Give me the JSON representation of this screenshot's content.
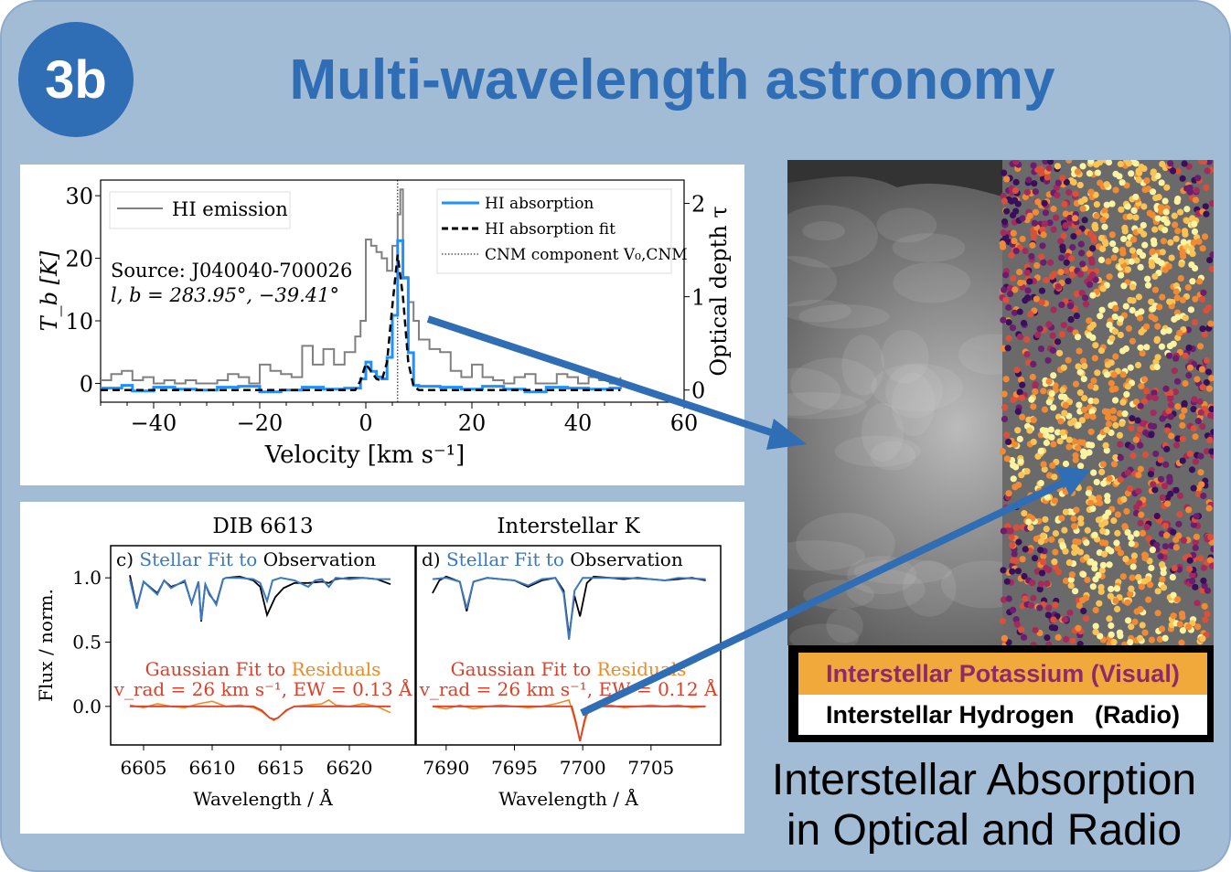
{
  "badge": "3b",
  "title": "Multi-wavelength astronomy",
  "colors": {
    "accent": "#2f6db5",
    "background": "#a3bcd6",
    "emission": "#808080",
    "absorption": "#1e90ff",
    "fit": "#000000",
    "stellar_fit": "#3a78c0",
    "observation": "#000000",
    "gaussian_fit": "#d9412b",
    "residuals": "#f08a24",
    "legend_visual": "#f2a93b"
  },
  "chart_data": [
    {
      "type": "line",
      "panel": "HI",
      "xlabel": "Velocity [km s⁻¹]",
      "ylabel": "T_b [K]",
      "ylabel_right": "Optical depth τ",
      "xlim": [
        -50,
        60
      ],
      "ylim": [
        -3,
        32.5
      ],
      "ylim_right": [
        -0.13,
        2.25
      ],
      "xticks": [
        "−40",
        "−20",
        "0",
        "20",
        "40",
        "60"
      ],
      "xtick_values": [
        -40,
        -20,
        0,
        20,
        40,
        60
      ],
      "yticks": [
        "0",
        "10",
        "20",
        "30"
      ],
      "ytick_values": [
        0,
        10,
        20,
        30
      ],
      "yticks_right": [
        "0",
        "1",
        "2"
      ],
      "ytick_right_values": [
        0,
        1,
        2
      ],
      "annotation_source": "Source: J040040-700026",
      "annotation_coords": "l, b = 283.95°, −39.41°",
      "legend_left": [
        "HI emission"
      ],
      "legend_right": [
        "HI absorption",
        "HI absorption fit",
        "CNM component V₀,CNM"
      ],
      "cnm_velocity": 6,
      "series": [
        {
          "name": "HI emission",
          "axis": "left",
          "x": [
            -50,
            -48,
            -46,
            -44,
            -42,
            -40,
            -38,
            -36,
            -34,
            -32,
            -30,
            -28,
            -26,
            -24,
            -22,
            -20,
            -18,
            -16,
            -14,
            -12,
            -10,
            -8,
            -6,
            -4,
            -2,
            -1,
            0,
            1,
            2,
            3,
            4,
            5,
            6,
            6.5,
            7,
            8,
            9,
            10,
            12,
            14,
            16,
            18,
            20,
            22,
            24,
            26,
            28,
            30,
            32,
            34,
            36,
            38,
            40,
            42,
            44,
            46,
            48
          ],
          "y": [
            0.5,
            1.5,
            2,
            0.5,
            1,
            0,
            0.5,
            0,
            0.5,
            0,
            0,
            0.5,
            1.5,
            1,
            0,
            3,
            2,
            1.5,
            1,
            6,
            3,
            5.5,
            3,
            5,
            7.5,
            10,
            23,
            22,
            21,
            20,
            18,
            22,
            27,
            31,
            17,
            13,
            10,
            7,
            5.5,
            5,
            2,
            1,
            3,
            1,
            0.5,
            0,
            1,
            1.5,
            0,
            0,
            1.5,
            1,
            0,
            1,
            0.5,
            0,
            1
          ]
        },
        {
          "name": "HI absorption",
          "axis": "right",
          "x": [
            -50,
            -46,
            -44,
            -40,
            -36,
            -32,
            -28,
            -24,
            -20,
            -16,
            -12,
            -8,
            -4,
            -2,
            -1,
            0,
            1,
            2,
            3,
            4,
            5,
            6,
            7,
            8,
            9,
            10,
            14,
            18,
            22,
            26,
            30,
            34,
            38,
            42,
            46,
            48
          ],
          "y": [
            0.02,
            0.05,
            -0.01,
            0.03,
            0.01,
            0,
            0.03,
            0.04,
            -0.02,
            0,
            0.03,
            0.01,
            0.02,
            0.02,
            0.12,
            0.3,
            0.2,
            0.14,
            0.12,
            0.35,
            0.8,
            1.6,
            1.2,
            0.4,
            0.05,
            0.04,
            0.03,
            0.01,
            0.04,
            0.01,
            -0.02,
            0.03,
            0.02,
            0.01,
            0.02,
            0.01
          ]
        },
        {
          "name": "HI absorption fit",
          "axis": "right",
          "x": [
            -50,
            -2,
            -1,
            0,
            1,
            2,
            3,
            4,
            5,
            6,
            7,
            8,
            9,
            10,
            48
          ],
          "y": [
            0,
            0,
            0.1,
            0.28,
            0.2,
            0.12,
            0.1,
            0.3,
            0.9,
            1.45,
            1.0,
            0.3,
            0.04,
            0,
            0
          ]
        }
      ]
    },
    {
      "type": "line",
      "panel": "c",
      "title": "DIB 6613",
      "panel_label": "c)",
      "xlabel": "Wavelength / Å",
      "ylabel": "Flux / norm.",
      "xlim": [
        6602.6,
        6624.8
      ],
      "ylim": [
        -0.3,
        1.25
      ],
      "xticks": [
        "6605",
        "6610",
        "6615",
        "6620"
      ],
      "xtick_values": [
        6605,
        6610,
        6615,
        6620
      ],
      "yticks": [
        "0.0",
        "0.5",
        "1.0"
      ],
      "ytick_values": [
        0,
        0.5,
        1
      ],
      "top_label": {
        "a": "Stellar Fit to ",
        "b": "Observation"
      },
      "bottom_label": {
        "a": "Gaussian Fit to ",
        "b": "Residuals"
      },
      "fit_text": "v_rad = 26 km s⁻¹, EW = 0.13 Å",
      "series": [
        {
          "name": "Observation",
          "x": [
            6604,
            6604.5,
            6605,
            6606,
            6606.5,
            6607,
            6608,
            6608.5,
            6609,
            6609.2,
            6609.5,
            6609.8,
            6610.3,
            6610.8,
            6611,
            6612,
            6613,
            6613.5,
            6614,
            6614.6,
            6615.2,
            6616,
            6617,
            6618,
            6618.5,
            6619,
            6620,
            6621,
            6622,
            6623
          ],
          "y": [
            1.02,
            0.77,
            0.97,
            0.88,
            0.98,
            0.93,
            0.97,
            0.8,
            0.97,
            0.66,
            0.95,
            0.87,
            0.8,
            0.99,
            1.0,
            1.01,
            0.98,
            0.93,
            0.71,
            0.85,
            0.92,
            0.96,
            0.96,
            0.97,
            0.96,
            0.99,
            1.0,
            1.0,
            0.99,
            0.95
          ]
        },
        {
          "name": "Stellar Fit",
          "x": [
            6604,
            6604.5,
            6605,
            6606,
            6606.5,
            6607,
            6608,
            6608.5,
            6609,
            6609.2,
            6609.5,
            6609.8,
            6610.3,
            6610.8,
            6611,
            6612,
            6613,
            6613.5,
            6614,
            6614.4,
            6615,
            6616,
            6617,
            6617.5,
            6618,
            6618.5,
            6619,
            6620,
            6621,
            6622,
            6623
          ],
          "y": [
            0.99,
            0.76,
            0.97,
            0.87,
            0.98,
            0.92,
            0.98,
            0.8,
            0.97,
            0.67,
            0.95,
            0.88,
            0.79,
            0.99,
            1.0,
            1.0,
            0.99,
            0.96,
            0.82,
            0.98,
            1.0,
            0.98,
            0.93,
            0.98,
            0.99,
            0.93,
            1.0,
            0.99,
            1.0,
            0.99,
            0.99
          ]
        },
        {
          "name": "Residuals",
          "x": [
            6604,
            6605,
            6606,
            6607,
            6608,
            6609,
            6610,
            6611,
            6612,
            6613,
            6613.6,
            6614.2,
            6614.5,
            6615,
            6615.6,
            6616,
            6617,
            6618,
            6618.5,
            6619,
            6620,
            6621,
            6622,
            6623
          ],
          "y": [
            0.01,
            -0.01,
            0.02,
            0,
            -0.01,
            0.02,
            0.04,
            0,
            0.01,
            -0.01,
            -0.04,
            -0.09,
            -0.11,
            -0.07,
            -0.02,
            0,
            0.01,
            0.02,
            0.05,
            0.01,
            0,
            0.02,
            0,
            -0.05
          ]
        },
        {
          "name": "Gaussian Fit",
          "x": [
            6604,
            6613,
            6613.6,
            6614.2,
            6614.5,
            6614.8,
            6615.4,
            6616,
            6623
          ],
          "y": [
            0,
            0,
            -0.03,
            -0.09,
            -0.1,
            -0.09,
            -0.03,
            0,
            0
          ]
        }
      ]
    },
    {
      "type": "line",
      "panel": "d",
      "title": "Interstellar K",
      "panel_label": "d)",
      "xlabel": "Wavelength / Å",
      "xlim": [
        7687.8,
        7710.1
      ],
      "ylim": [
        -0.3,
        1.25
      ],
      "xticks": [
        "7690",
        "7695",
        "7700",
        "7705"
      ],
      "xtick_values": [
        7690,
        7695,
        7700,
        7705
      ],
      "top_label": {
        "a": "Stellar Fit to ",
        "b": "Observation"
      },
      "bottom_label": {
        "a": "Gaussian Fit to ",
        "b": "Residuals"
      },
      "fit_text": "v_rad = 26 km s⁻¹, EW = 0.12 Å",
      "series": [
        {
          "name": "Observation",
          "x": [
            7689,
            7689.5,
            7690,
            7691,
            7691.5,
            7692,
            7693,
            7694,
            7695,
            7696,
            7697,
            7698,
            7698.6,
            7699,
            7699.4,
            7699.8,
            7700.3,
            7700.8,
            7702,
            7703,
            7704,
            7705,
            7706,
            7707,
            7708,
            7709
          ],
          "y": [
            0.88,
            0.98,
            1.01,
            0.97,
            0.74,
            0.97,
            1.0,
            0.99,
            0.98,
            0.93,
            0.98,
            1.0,
            0.9,
            0.55,
            0.86,
            0.7,
            0.96,
            1.01,
            1.0,
            0.99,
            1.0,
            0.99,
            0.98,
            0.99,
            1.0,
            0.98
          ]
        },
        {
          "name": "Stellar Fit",
          "x": [
            7689,
            7690,
            7691,
            7691.5,
            7692,
            7693,
            7694,
            7695,
            7696,
            7697,
            7698,
            7698.6,
            7699,
            7699.4,
            7700,
            7701,
            7703,
            7705,
            7706,
            7707,
            7709
          ],
          "y": [
            0.99,
            1.0,
            0.97,
            0.76,
            0.97,
            1.0,
            0.99,
            0.98,
            0.94,
            0.99,
            1.0,
            0.88,
            0.52,
            0.9,
            1.0,
            1.0,
            1.0,
            0.99,
            0.98,
            1.0,
            0.99
          ]
        },
        {
          "name": "Residuals",
          "x": [
            7689,
            7690,
            7691,
            7692,
            7693,
            7694,
            7695,
            7696,
            7697,
            7698,
            7699,
            7699.4,
            7699.8,
            7700.2,
            7700.6,
            7701,
            7702,
            7703,
            7704,
            7705,
            7706,
            7707,
            7708,
            7709
          ],
          "y": [
            0,
            -0.02,
            0.01,
            -0.02,
            0,
            0.01,
            0,
            -0.01,
            0,
            0.02,
            0.05,
            -0.1,
            -0.27,
            -0.1,
            0.01,
            0,
            0.01,
            -0.01,
            0,
            0.01,
            0,
            0.01,
            -0.01,
            0
          ]
        },
        {
          "name": "Gaussian Fit",
          "x": [
            7689,
            7699.2,
            7699.5,
            7699.8,
            7700.1,
            7700.4,
            7709
          ],
          "y": [
            0,
            0,
            -0.12,
            -0.27,
            -0.12,
            0,
            0
          ]
        }
      ]
    }
  ],
  "legend": {
    "visual": "Interstellar Potassium (Visual)",
    "radio": "Interstellar Hydrogen   (Radio)"
  },
  "caption": {
    "line1": "Interstellar Absorption",
    "line2": "in Optical and Radio"
  }
}
